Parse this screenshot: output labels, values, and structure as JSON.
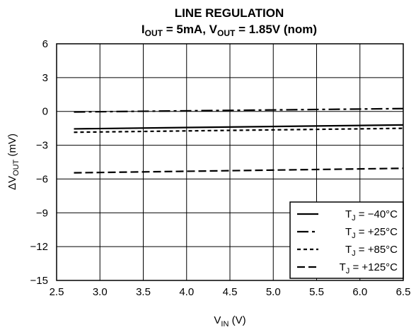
{
  "chart_data": {
    "type": "line",
    "title": "LINE REGULATION",
    "subtitle": {
      "i_sym": "I",
      "i_sub": "OUT",
      "i_val": " = 5mA, ",
      "v_sym": "V",
      "v_sub": "OUT",
      "v_val": " = 1.85V (nom)"
    },
    "xlabel": {
      "sym": "V",
      "sub": "IN",
      "unit": " (V)"
    },
    "ylabel": {
      "sym": "ΔV",
      "sub": "OUT",
      "unit": " (mV)"
    },
    "xlim": [
      2.5,
      6.5
    ],
    "ylim": [
      -15,
      6
    ],
    "x_ticks": [
      2.5,
      3.0,
      3.5,
      4.0,
      4.5,
      5.0,
      5.5,
      6.0,
      6.5
    ],
    "x_tick_labels": [
      "2.5",
      "3.0",
      "3.5",
      "4.0",
      "4.5",
      "5.0",
      "5.5",
      "6.0",
      "6.5"
    ],
    "y_ticks": [
      6,
      3,
      0,
      -3,
      -6,
      -9,
      -12,
      -15
    ],
    "y_tick_labels": [
      "6",
      "3",
      "0",
      "−3",
      "−6",
      "−9",
      "−12",
      "−15"
    ],
    "grid": true,
    "legend_position": "bottom-right",
    "series": [
      {
        "name": "T_J = −40°C",
        "legend": {
          "sym": "T",
          "sub": "J",
          "val": " = −40°C"
        },
        "dash": "solid",
        "x": [
          2.7,
          6.5
        ],
        "y": [
          -1.55,
          -1.2
        ]
      },
      {
        "name": "T_J = +25°C",
        "legend": {
          "sym": "T",
          "sub": "J",
          "val": " = +25°C"
        },
        "dash": "dashdot",
        "x": [
          2.7,
          6.5
        ],
        "y": [
          -0.05,
          0.25
        ]
      },
      {
        "name": "T_J = +85°C",
        "legend": {
          "sym": "T",
          "sub": "J",
          "val": " = +85°C"
        },
        "dash": "short",
        "x": [
          2.7,
          6.5
        ],
        "y": [
          -1.85,
          -1.5
        ]
      },
      {
        "name": "T_J = +125°C",
        "legend": {
          "sym": "T",
          "sub": "J",
          "val": " = +125°C"
        },
        "dash": "long",
        "x": [
          2.7,
          6.5
        ],
        "y": [
          -5.45,
          -5.05
        ]
      }
    ]
  }
}
